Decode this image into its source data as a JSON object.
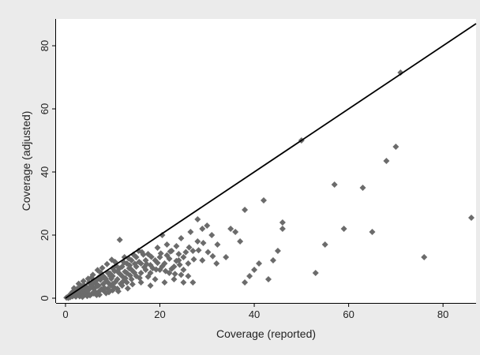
{
  "chart_data": {
    "type": "scatter",
    "xlabel": "Coverage (reported)",
    "ylabel": "Coverage (adjusted)",
    "xlim": [
      -2,
      87
    ],
    "ylim": [
      -1.5,
      88.5
    ],
    "x_ticks": [
      0,
      20,
      40,
      60,
      80
    ],
    "y_ticks": [
      0,
      20,
      40,
      60,
      80
    ],
    "grid": false,
    "legend": "none",
    "colors": {
      "background": "#ebebeb",
      "plot_area": "#ffffff",
      "points": "#6b6b6b",
      "reference_line": "#000000"
    },
    "reference_line": {
      "from": [
        0,
        0
      ],
      "to": [
        87,
        87
      ]
    },
    "series": [
      {
        "marker": "diamond",
        "points": [
          [
            0.2,
            0.2
          ],
          [
            0.5,
            0.4
          ],
          [
            0.8,
            0.8
          ],
          [
            1,
            0.3
          ],
          [
            1,
            1
          ],
          [
            1.2,
            1.5
          ],
          [
            1.5,
            0.6
          ],
          [
            1.5,
            2
          ],
          [
            2,
            0.8
          ],
          [
            2,
            1.8
          ],
          [
            2,
            2.5
          ],
          [
            2.5,
            1.2
          ],
          [
            2.5,
            3
          ],
          [
            3,
            0.6
          ],
          [
            3,
            2
          ],
          [
            3,
            3.2
          ],
          [
            3.5,
            1.5
          ],
          [
            3.5,
            3.8
          ],
          [
            4,
            1
          ],
          [
            4,
            2.5
          ],
          [
            4,
            4
          ],
          [
            4.5,
            3.5
          ],
          [
            5,
            1.2
          ],
          [
            5,
            2.8
          ],
          [
            5,
            5
          ],
          [
            5.5,
            4
          ],
          [
            5.5,
            6.5
          ],
          [
            6,
            1.5
          ],
          [
            6,
            3
          ],
          [
            6,
            5
          ],
          [
            6.5,
            5.5
          ],
          [
            7,
            2
          ],
          [
            7,
            4
          ],
          [
            7,
            6.5
          ],
          [
            7.5,
            8
          ],
          [
            8,
            2.5
          ],
          [
            8,
            4.5
          ],
          [
            8,
            7
          ],
          [
            8.5,
            6
          ],
          [
            9,
            3
          ],
          [
            9,
            5
          ],
          [
            9,
            8
          ],
          [
            9.5,
            7
          ],
          [
            10,
            2.5
          ],
          [
            10,
            4.5
          ],
          [
            10,
            7
          ],
          [
            10,
            9.5
          ],
          [
            10.5,
            11.5
          ],
          [
            11,
            3
          ],
          [
            11,
            6
          ],
          [
            11,
            8.5
          ],
          [
            11.5,
            18.5
          ],
          [
            12,
            4
          ],
          [
            12,
            7
          ],
          [
            12,
            10
          ],
          [
            12.5,
            13
          ],
          [
            13,
            5
          ],
          [
            13,
            8
          ],
          [
            13,
            11
          ],
          [
            13.5,
            9.5
          ],
          [
            14,
            6
          ],
          [
            14,
            9
          ],
          [
            14,
            12
          ],
          [
            15,
            7
          ],
          [
            15,
            10
          ],
          [
            15,
            13
          ],
          [
            15.5,
            15
          ],
          [
            16,
            5
          ],
          [
            16,
            8
          ],
          [
            16,
            11
          ],
          [
            17,
            9
          ],
          [
            17,
            12
          ],
          [
            17.5,
            14
          ],
          [
            18,
            4
          ],
          [
            18,
            8
          ],
          [
            18,
            10.5
          ],
          [
            19,
            6
          ],
          [
            19,
            12
          ],
          [
            19.5,
            16
          ],
          [
            20,
            9
          ],
          [
            20,
            13
          ],
          [
            20.5,
            20
          ],
          [
            21,
            5
          ],
          [
            21,
            11
          ],
          [
            21.5,
            17
          ],
          [
            22,
            8
          ],
          [
            22,
            12.5
          ],
          [
            22.5,
            15
          ],
          [
            23,
            6
          ],
          [
            23,
            10
          ],
          [
            23.5,
            16.5
          ],
          [
            24,
            12
          ],
          [
            24,
            14
          ],
          [
            24.5,
            19
          ],
          [
            25,
            5
          ],
          [
            25,
            9
          ],
          [
            25,
            13
          ],
          [
            26,
            7
          ],
          [
            26,
            11
          ],
          [
            26.5,
            21
          ],
          [
            27,
            15
          ],
          [
            27,
            5
          ],
          [
            28,
            18
          ],
          [
            28,
            25
          ],
          [
            29,
            22
          ],
          [
            29,
            12
          ],
          [
            30,
            23
          ],
          [
            31,
            20
          ],
          [
            32,
            11
          ],
          [
            34,
            13
          ],
          [
            35,
            22
          ],
          [
            36,
            21
          ],
          [
            37,
            18
          ],
          [
            38,
            5
          ],
          [
            38,
            28
          ],
          [
            39,
            7
          ],
          [
            40,
            9
          ],
          [
            41,
            11
          ],
          [
            42,
            31
          ],
          [
            43,
            6
          ],
          [
            44,
            12
          ],
          [
            45,
            15
          ],
          [
            46,
            22
          ],
          [
            46,
            24
          ],
          [
            50,
            50
          ],
          [
            53,
            8
          ],
          [
            55,
            17
          ],
          [
            57,
            36
          ],
          [
            59,
            22
          ],
          [
            63,
            35
          ],
          [
            65,
            21
          ],
          [
            68,
            43.5
          ],
          [
            70,
            48
          ],
          [
            71,
            71.5
          ],
          [
            76,
            13
          ],
          [
            86,
            25.5
          ],
          [
            2.2,
            0.5
          ],
          [
            3.2,
            1.1
          ],
          [
            4.2,
            1.8
          ],
          [
            5.2,
            0.9
          ],
          [
            6.2,
            2.2
          ],
          [
            7.2,
            1.1
          ],
          [
            8.2,
            3.3
          ],
          [
            9.2,
            1.9
          ],
          [
            10.2,
            3.6
          ],
          [
            11.2,
            2.2
          ],
          [
            12.2,
            5.3
          ],
          [
            13.2,
            3.1
          ],
          [
            14.2,
            4.4
          ],
          [
            1.8,
            3.2
          ],
          [
            2.8,
            4.6
          ],
          [
            3.8,
            5.4
          ],
          [
            4.8,
            6.2
          ],
          [
            5.8,
            7.4
          ],
          [
            6.8,
            8.9
          ],
          [
            7.8,
            9.6
          ],
          [
            8.8,
            10.8
          ],
          [
            9.8,
            12.2
          ],
          [
            16.5,
            13.8
          ],
          [
            17.5,
            6.8
          ],
          [
            18.5,
            9.5
          ],
          [
            19.5,
            11.2
          ],
          [
            20.5,
            10.1
          ],
          [
            21.5,
            13.6
          ],
          [
            22.5,
            9.3
          ],
          [
            23.5,
            11.8
          ],
          [
            24.5,
            7.4
          ],
          [
            25.5,
            14.6
          ],
          [
            3.6,
            0.4
          ],
          [
            4.6,
            0.7
          ],
          [
            5.6,
            1.4
          ],
          [
            6.6,
            1.0
          ],
          [
            7.6,
            2.8
          ],
          [
            8.6,
            1.6
          ],
          [
            9.6,
            4.1
          ],
          [
            10.6,
            5.2
          ],
          [
            11.6,
            7.6
          ],
          [
            12.6,
            8.4
          ],
          [
            13.6,
            10.4
          ],
          [
            14.6,
            8.1
          ],
          [
            15.6,
            11.5
          ],
          [
            16.2,
            14.6
          ],
          [
            17.2,
            10.8
          ],
          [
            18.2,
            13.1
          ],
          [
            19.2,
            9.1
          ],
          [
            20.2,
            14.2
          ],
          [
            21.2,
            8.6
          ],
          [
            22.2,
            14.8
          ],
          [
            23.2,
            7.7
          ],
          [
            24.2,
            10.6
          ],
          [
            2.4,
            1.9
          ],
          [
            3.4,
            2.7
          ],
          [
            4.4,
            3.1
          ],
          [
            5.4,
            3.6
          ],
          [
            6.4,
            4.7
          ],
          [
            7.4,
            5.8
          ],
          [
            8.4,
            6.4
          ],
          [
            9.4,
            7.9
          ],
          [
            10.4,
            8.6
          ],
          [
            11.4,
            9.4
          ],
          [
            12.4,
            11.3
          ],
          [
            13.4,
            12.6
          ],
          [
            14.4,
            13.8
          ],
          [
            0.6,
            0.1
          ],
          [
            1.3,
            0.9
          ],
          [
            1.7,
            1.2
          ],
          [
            2.7,
            2.1
          ],
          [
            3.7,
            2.9
          ],
          [
            4.7,
            2.3
          ],
          [
            5.7,
            4.9
          ],
          [
            6.7,
            3.8
          ],
          [
            7.7,
            6.9
          ],
          [
            8.7,
            5.4
          ],
          [
            9.7,
            6.2
          ],
          [
            10.7,
            10.3
          ],
          [
            11.7,
            4.6
          ],
          [
            12.7,
            6.3
          ],
          [
            13.7,
            7.2
          ],
          [
            14.7,
            10.9
          ],
          [
            15.7,
            6.4
          ],
          [
            16.7,
            9.8
          ],
          [
            26.2,
            16.1
          ],
          [
            27.2,
            12.3
          ],
          [
            28.2,
            15.2
          ],
          [
            29.2,
            17.5
          ],
          [
            30.2,
            14.6
          ],
          [
            31.2,
            13.3
          ],
          [
            32.2,
            17.0
          ]
        ]
      }
    ]
  }
}
